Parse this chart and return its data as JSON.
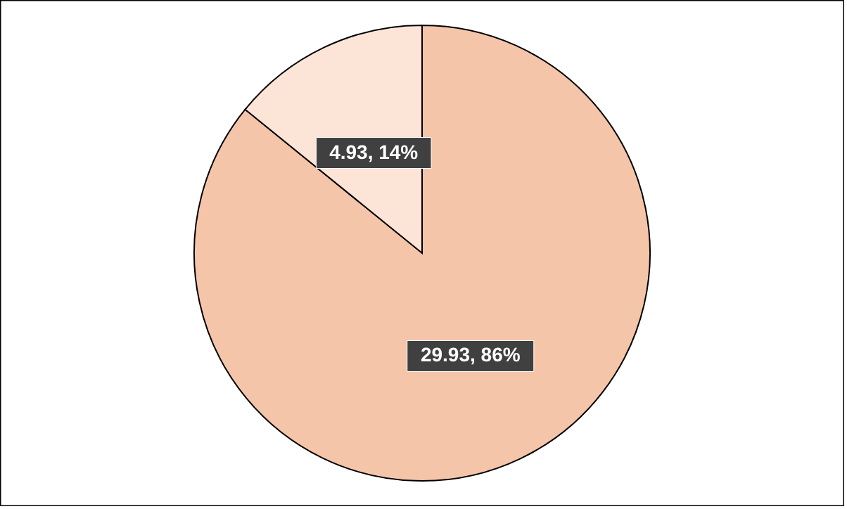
{
  "chart_data": {
    "type": "pie",
    "categories": [
      null,
      null
    ],
    "values": [
      29.93,
      4.93
    ],
    "colors": [
      "#f5c5a9",
      "#fce4d7"
    ],
    "value_labels": [
      "29.93, 86%",
      "4.93, 14%"
    ]
  }
}
